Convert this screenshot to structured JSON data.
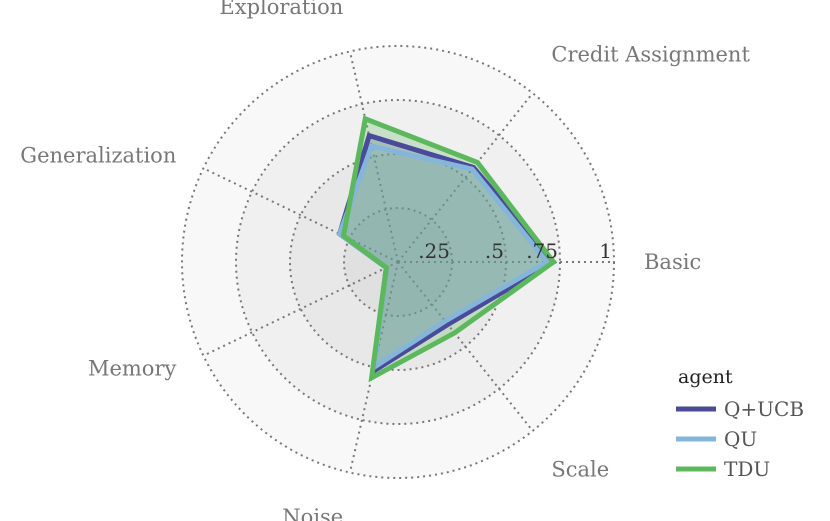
{
  "chart_data": {
    "type": "radar",
    "axes": [
      "Basic",
      "Credit Assignment",
      "Exploration",
      "Generalization",
      "Memory",
      "Noise",
      "Scale"
    ],
    "rlim": [
      0,
      1
    ],
    "ticks": [
      0.25,
      0.5,
      0.75,
      1
    ],
    "tick_labels": [
      ".25",
      ".5",
      ".75",
      "1"
    ],
    "grid": true,
    "legend": {
      "title": "agent",
      "placement": "bottom-right"
    },
    "series": [
      {
        "name": "Q+UCB",
        "color": "#4a4a9a",
        "values": [
          0.72,
          0.56,
          0.6,
          0.3,
          0.06,
          0.52,
          0.37
        ]
      },
      {
        "name": "QU",
        "color": "#85b6da",
        "values": [
          0.69,
          0.55,
          0.55,
          0.3,
          0.06,
          0.5,
          0.35
        ]
      },
      {
        "name": "TDU",
        "color": "#5cb85c",
        "values": [
          0.72,
          0.59,
          0.68,
          0.28,
          0.06,
          0.55,
          0.42
        ]
      }
    ]
  }
}
